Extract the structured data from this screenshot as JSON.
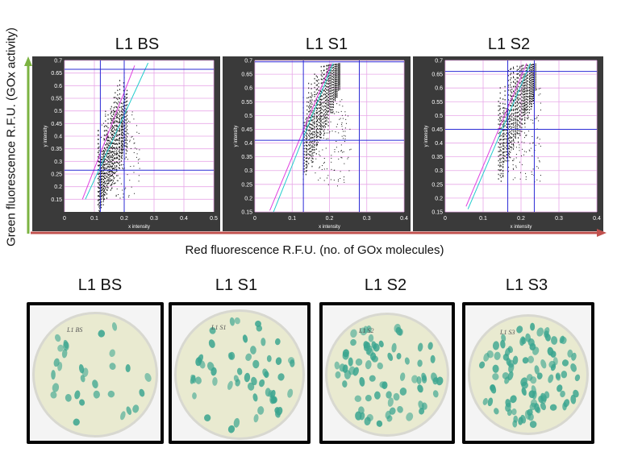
{
  "axes": {
    "ylabel": "Green fluorescence R.F.U. (GOx activity)",
    "xlabel": "Red fluorescence R.F.U. (no. of GOx molecules)",
    "y_arrow_color": "#7cb342",
    "x_arrow_color": "#c0504d"
  },
  "chart_data": [
    {
      "type": "scatter",
      "title": "L1 BS",
      "xlabel": "x intensity",
      "ylabel": "y intensity",
      "xlim": [
        0,
        0.5
      ],
      "ylim": [
        0.1,
        0.7
      ],
      "xticks": [
        "0",
        "0.1",
        "0.2",
        "0.3",
        "0.4",
        "0.5"
      ],
      "yticks": [
        "0.15",
        "0.2",
        "0.25",
        "0.3",
        "0.35",
        "0.4",
        "0.45",
        "0.5",
        "0.55",
        "0.6",
        "0.65",
        "0.7"
      ],
      "gates": {
        "x": [
          0.12,
          0.2
        ],
        "y": [
          0.265,
          0.665
        ]
      },
      "diagonals": [
        {
          "color": "#e040e0",
          "x": [
            0.06,
            0.235
          ],
          "y": [
            0.15,
            0.68
          ]
        },
        {
          "color": "#22cccc",
          "x": [
            0.07,
            0.28
          ],
          "y": [
            0.15,
            0.69
          ]
        }
      ],
      "cloud": {
        "x_center": 0.16,
        "y_center": 0.33,
        "spread": 0.06
      }
    },
    {
      "type": "scatter",
      "title": "L1 S1",
      "xlabel": "x intensity",
      "ylabel": "y intensity",
      "xlim": [
        0,
        0.4
      ],
      "ylim": [
        0.15,
        0.7
      ],
      "xticks": [
        "0",
        "0.1",
        "0.2",
        "0.3",
        "0.4"
      ],
      "yticks": [
        "0.15",
        "0.2",
        "0.25",
        "0.3",
        "0.35",
        "0.4",
        "0.45",
        "0.5",
        "0.55",
        "0.6",
        "0.65",
        "0.7"
      ],
      "gates": {
        "x": [
          0.13,
          0.28
        ],
        "y": [
          0.41,
          0.695
        ]
      },
      "diagonals": [
        {
          "color": "#e040e0",
          "x": [
            0.04,
            0.205
          ],
          "y": [
            0.155,
            0.69
          ]
        },
        {
          "color": "#22cccc",
          "x": [
            0.05,
            0.21
          ],
          "y": [
            0.15,
            0.69
          ]
        }
      ],
      "cloud": {
        "x_center": 0.18,
        "y_center": 0.42,
        "spread": 0.05
      }
    },
    {
      "type": "scatter",
      "title": "L1 S2",
      "xlabel": "x intensity",
      "ylabel": "y intensity",
      "xlim": [
        0,
        0.4
      ],
      "ylim": [
        0.15,
        0.7
      ],
      "xticks": [
        "0",
        "0.1",
        "0.2",
        "0.3",
        "0.4"
      ],
      "yticks": [
        "0.15",
        "0.2",
        "0.25",
        "0.3",
        "0.35",
        "0.4",
        "0.45",
        "0.5",
        "0.55",
        "0.6",
        "0.65",
        "0.7"
      ],
      "gates": {
        "x": [
          0.165,
          0.235
        ],
        "y": [
          0.45,
          0.66
        ]
      },
      "diagonals": [
        {
          "color": "#e040e0",
          "x": [
            0.055,
            0.215
          ],
          "y": [
            0.17,
            0.69
          ]
        },
        {
          "color": "#22cccc",
          "x": [
            0.06,
            0.225
          ],
          "y": [
            0.16,
            0.69
          ]
        }
      ],
      "cloud": {
        "x_center": 0.19,
        "y_center": 0.43,
        "spread": 0.04
      }
    }
  ],
  "plates": [
    {
      "title": "L1 BS",
      "handwriting": "L1 BS",
      "colony_count": 30
    },
    {
      "title": "L1 S1",
      "handwriting": "L1 S1",
      "colony_count": 55
    },
    {
      "title": "L1 S2",
      "handwriting": "L1 S2",
      "colony_count": 75
    },
    {
      "title": "L1 S3",
      "handwriting": "L1 S3",
      "colony_count": 95
    }
  ],
  "colors": {
    "plot_bg": "#ffffff",
    "frame": "#3a3a3a",
    "grid": "#e8a8e8",
    "gate": "#2b2bd6",
    "point": "#111111",
    "agar": "#e9ead0",
    "colony": "#3aa58f"
  }
}
